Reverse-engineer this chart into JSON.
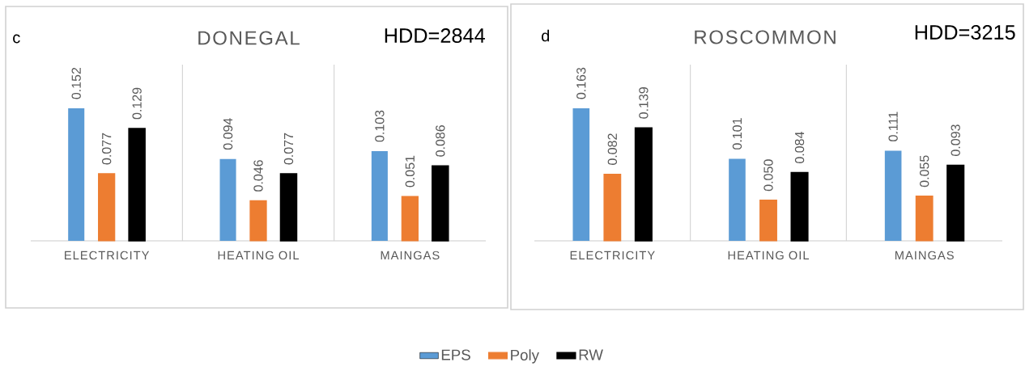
{
  "chart_data": [
    {
      "type": "bar",
      "title": "DONEGAL",
      "annotations": [
        "c",
        "HDD=2844"
      ],
      "categories": [
        "ELECTRICITY",
        "HEATING OIL",
        "MAINGAS"
      ],
      "grid": "x",
      "legend": "bottom",
      "series": [
        {
          "name": "EPS",
          "color": "#5b9bd5",
          "values": [
            0.152,
            0.094,
            0.103
          ],
          "value_labels": [
            "0.152",
            "0.094",
            "0.103"
          ]
        },
        {
          "name": "Poly",
          "color": "#ed7d31",
          "values": [
            0.077,
            0.046,
            0.051
          ],
          "value_labels": [
            "0.077",
            "0.046",
            "0.051"
          ]
        },
        {
          "name": "RW",
          "color": "#000000",
          "values": [
            0.129,
            0.077,
            0.086
          ],
          "value_labels": [
            "0.129",
            "0.077",
            "0.086"
          ]
        }
      ]
    },
    {
      "type": "bar",
      "title": "ROSCOMMON",
      "annotations": [
        "d",
        "HDD=3215"
      ],
      "categories": [
        "ELECTRICITY",
        "HEATING OIL",
        "MAINGAS"
      ],
      "grid": "x",
      "series": [
        {
          "color": "#5b9bd5",
          "values": [
            0.163,
            0.101,
            0.111
          ],
          "value_labels": [
            "0.163",
            "0.101",
            "0.111"
          ]
        },
        {
          "color": "#ed7d31",
          "values": [
            0.082,
            0.05,
            0.055
          ],
          "value_labels": [
            "0.082",
            "0.050",
            "0.055"
          ]
        },
        {
          "color": "#000000",
          "values": [
            0.139,
            0.084,
            0.093
          ],
          "value_labels": [
            "0.139",
            "0.084",
            "0.093"
          ]
        }
      ]
    }
  ]
}
